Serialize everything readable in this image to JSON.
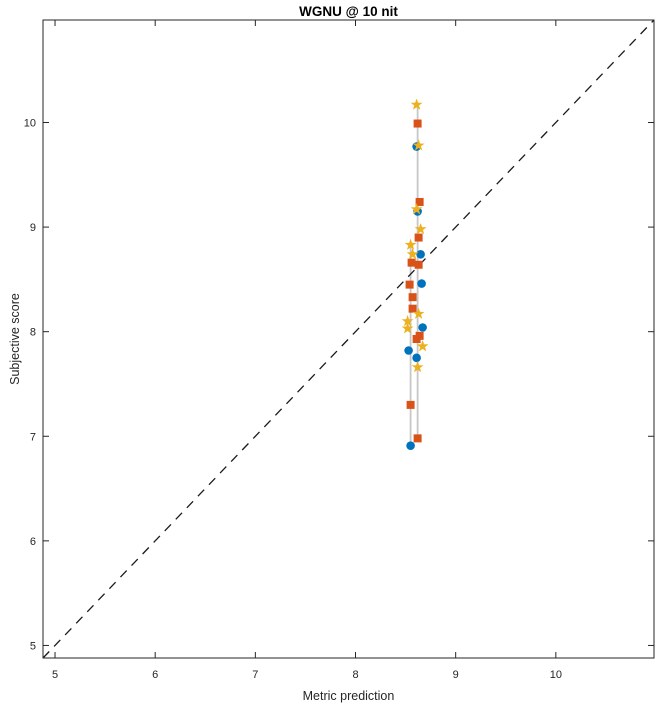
{
  "chart_data": {
    "type": "scatter",
    "title": "WGNU @ 10 nit",
    "xlabel": "Metric prediction",
    "ylabel": "Subjective score",
    "xlim": [
      4.88,
      10.98
    ],
    "ylim": [
      4.88,
      10.98
    ],
    "xticks": [
      5,
      6,
      7,
      8,
      9,
      10
    ],
    "yticks": [
      5,
      6,
      7,
      8,
      9,
      10
    ],
    "grid": false,
    "legend_position": "none",
    "axis_color": "#262626",
    "background_color": "#ffffff",
    "identity_line": {
      "style": "dashed",
      "color": "#1a1a1a",
      "from": 4.88,
      "to": 10.98
    },
    "error_lines": [
      {
        "x": 8.55,
        "y_min": 6.91,
        "y_max": 8.83,
        "color": "#c7c7c7"
      },
      {
        "x": 8.62,
        "y_min": 6.98,
        "y_max": 10.17,
        "color": "#c7c7c7"
      }
    ],
    "series": [
      {
        "name": "circle-markers",
        "marker": "circle",
        "color": "#0072BD",
        "points": [
          [
            8.61,
            9.77
          ],
          [
            8.62,
            9.15
          ],
          [
            8.65,
            8.74
          ],
          [
            8.66,
            8.46
          ],
          [
            8.67,
            8.04
          ],
          [
            8.53,
            7.82
          ],
          [
            8.61,
            7.75
          ],
          [
            8.55,
            6.91
          ]
        ]
      },
      {
        "name": "square-markers",
        "marker": "square",
        "color": "#D95319",
        "points": [
          [
            8.62,
            9.99
          ],
          [
            8.64,
            9.24
          ],
          [
            8.63,
            8.9
          ],
          [
            8.56,
            8.66
          ],
          [
            8.63,
            8.64
          ],
          [
            8.54,
            8.45
          ],
          [
            8.57,
            8.33
          ],
          [
            8.57,
            8.22
          ],
          [
            8.64,
            7.96
          ],
          [
            8.61,
            7.93
          ],
          [
            8.55,
            7.3
          ],
          [
            8.62,
            6.98
          ]
        ]
      },
      {
        "name": "star-markers",
        "marker": "pentagram",
        "color": "#EDB120",
        "points": [
          [
            8.61,
            10.17
          ],
          [
            8.63,
            9.78
          ],
          [
            8.61,
            9.17
          ],
          [
            8.65,
            8.98
          ],
          [
            8.55,
            8.83
          ],
          [
            8.57,
            8.74
          ],
          [
            8.63,
            8.17
          ],
          [
            8.52,
            8.1
          ],
          [
            8.52,
            8.03
          ],
          [
            8.67,
            7.86
          ],
          [
            8.62,
            7.66
          ]
        ]
      }
    ]
  }
}
